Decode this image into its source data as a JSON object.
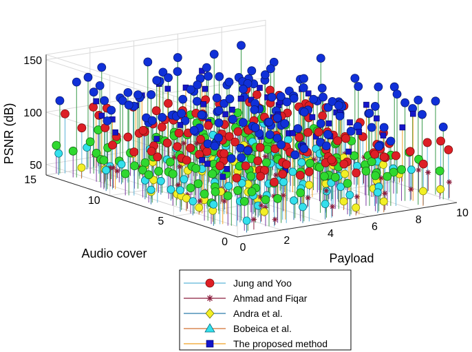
{
  "chart_data": {
    "type": "scatter",
    "subtype": "3d-stem",
    "title": "",
    "xlabel": "Payload",
    "ylabel": "Audio cover",
    "zlabel": "PSNR (dB)",
    "xlim": [
      0,
      10
    ],
    "ylim": [
      0,
      15
    ],
    "zlim": [
      40,
      150
    ],
    "xticks": [
      "0",
      "2",
      "4",
      "6",
      "8",
      "10"
    ],
    "yticks": [
      "0",
      "5",
      "10",
      "15"
    ],
    "zticks": [
      "50",
      "100",
      "150"
    ],
    "grid": true,
    "legend_position": "bottom-center",
    "colors": {
      "jung": "#dd1f26",
      "ahmad": "#8b1c3c",
      "andra": "#f2ef25",
      "bobeica": "#33e0ec",
      "proposed": "#1515c8",
      "green_disc": "#2fd82f",
      "blue_disc": "#1030d8"
    },
    "series": [
      {
        "name": "Jung and Yoo",
        "marker": "circle",
        "color": "#dd1f26",
        "typical_psnr": [
          75,
          95
        ]
      },
      {
        "name": "Ahmad and Fiqar",
        "marker": "asterisk",
        "color": "#8b1c3c",
        "typical_psnr": [
          45,
          95
        ]
      },
      {
        "name": "Andra et al.",
        "marker": "diamond",
        "color": "#f2ef25",
        "typical_psnr": [
          45,
          60
        ]
      },
      {
        "name": "Bobeica et al.",
        "marker": "triangle",
        "color": "#33e0ec",
        "typical_psnr": [
          50,
          65
        ]
      },
      {
        "name": "The proposed method",
        "marker": "square",
        "color": "#1515c8",
        "typical_psnr": [
          70,
          148
        ]
      }
    ]
  }
}
